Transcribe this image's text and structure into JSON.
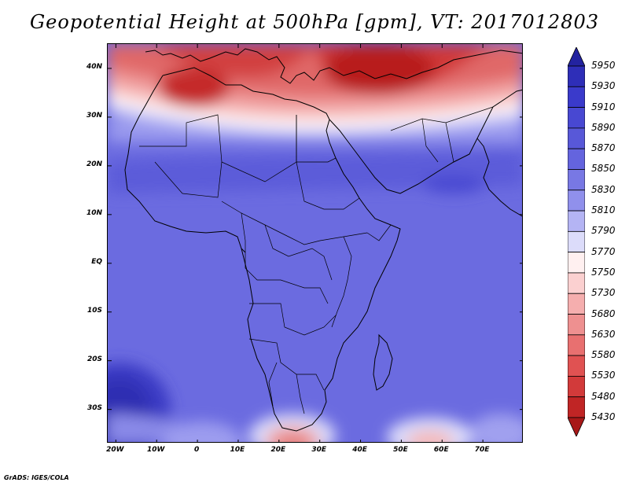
{
  "title": "Geopotential Height at 500hPa [gpm], VT: 2017012803",
  "credit": "GrADS: IGES/COLA",
  "map": {
    "lon_range": [
      -22,
      80
    ],
    "lat_range": [
      -37,
      45
    ],
    "lat_ticks": [
      {
        "value": 40,
        "label": "40N"
      },
      {
        "value": 30,
        "label": "30N"
      },
      {
        "value": 20,
        "label": "20N"
      },
      {
        "value": 10,
        "label": "10N"
      },
      {
        "value": 0,
        "label": "EQ"
      },
      {
        "value": -10,
        "label": "10S"
      },
      {
        "value": -20,
        "label": "20S"
      },
      {
        "value": -30,
        "label": "30S"
      }
    ],
    "lon_ticks": [
      {
        "value": -20,
        "label": "20W"
      },
      {
        "value": -10,
        "label": "10W"
      },
      {
        "value": 0,
        "label": "0"
      },
      {
        "value": 10,
        "label": "10E"
      },
      {
        "value": 20,
        "label": "20E"
      },
      {
        "value": 30,
        "label": "30E"
      },
      {
        "value": 40,
        "label": "40E"
      },
      {
        "value": 50,
        "label": "50E"
      },
      {
        "value": 60,
        "label": "60E"
      },
      {
        "value": 70,
        "label": "70E"
      }
    ],
    "colorbar": {
      "levels": [
        "5950",
        "5930",
        "5910",
        "5890",
        "5870",
        "5850",
        "5830",
        "5810",
        "5790",
        "5770",
        "5750",
        "5730",
        "5680",
        "5630",
        "5580",
        "5530",
        "5480",
        "5430"
      ],
      "colors": [
        "#2323a0",
        "#2e2eb8",
        "#3a3acb",
        "#4848d2",
        "#5858d8",
        "#6464de",
        "#7878e4",
        "#9090ec",
        "#b4b4f4",
        "#dcdcfa",
        "#fff0f0",
        "#fbd0d0",
        "#f5aeae",
        "#ee9090",
        "#e87070",
        "#e05252",
        "#d23a3a",
        "#c02525",
        "#a81818"
      ]
    }
  }
}
